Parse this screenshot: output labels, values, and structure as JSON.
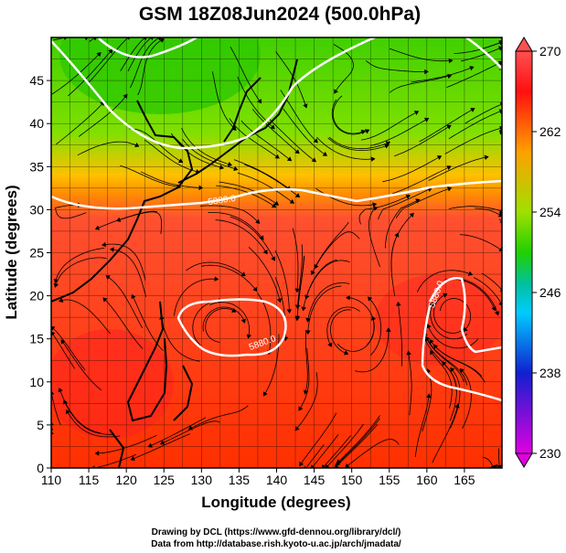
{
  "title": "GSM 18Z08Jun2024 (500.0hPa)",
  "xlabel": "Longitude (degrees)",
  "ylabel": "Latitude  (degrees)",
  "x_ticks": [
    "110",
    "115",
    "120",
    "125",
    "130",
    "135",
    "140",
    "145",
    "150",
    "155",
    "160",
    "165"
  ],
  "y_ticks": [
    "0",
    "5",
    "10",
    "15",
    "20",
    "25",
    "30",
    "35",
    "40",
    "45"
  ],
  "colorbar": {
    "tick_labels": [
      "270",
      "262",
      "254",
      "246",
      "238",
      "230"
    ],
    "colors": [
      "#ff0000",
      "#ffa000",
      "#40d000",
      "#00ccff",
      "#1020d0",
      "#e000e0"
    ]
  },
  "contour_labels": [
    "5880.0",
    "5880.0",
    "5880.0"
  ],
  "credits": {
    "line1": "Drawing by DCL (https://www.gfd-dennou.org/library/dcl/)",
    "line2": "Data from http://database.rish.kyoto-u.ac.jp/arch/jmadata/"
  },
  "chart_data": {
    "type": "heatmap",
    "variable": "temperature field with wind streamlines",
    "title": "GSM 18Z08Jun2024 (500.0hPa)",
    "xlabel": "Longitude (degrees)",
    "ylabel": "Latitude  (degrees)",
    "xlim": [
      110,
      170
    ],
    "ylim": [
      0,
      50
    ],
    "colorbar_range": [
      230,
      270
    ],
    "colorbar_ticks": [
      230,
      238,
      246,
      254,
      262,
      270
    ],
    "contour_level": 5880.0,
    "grid": true
  }
}
